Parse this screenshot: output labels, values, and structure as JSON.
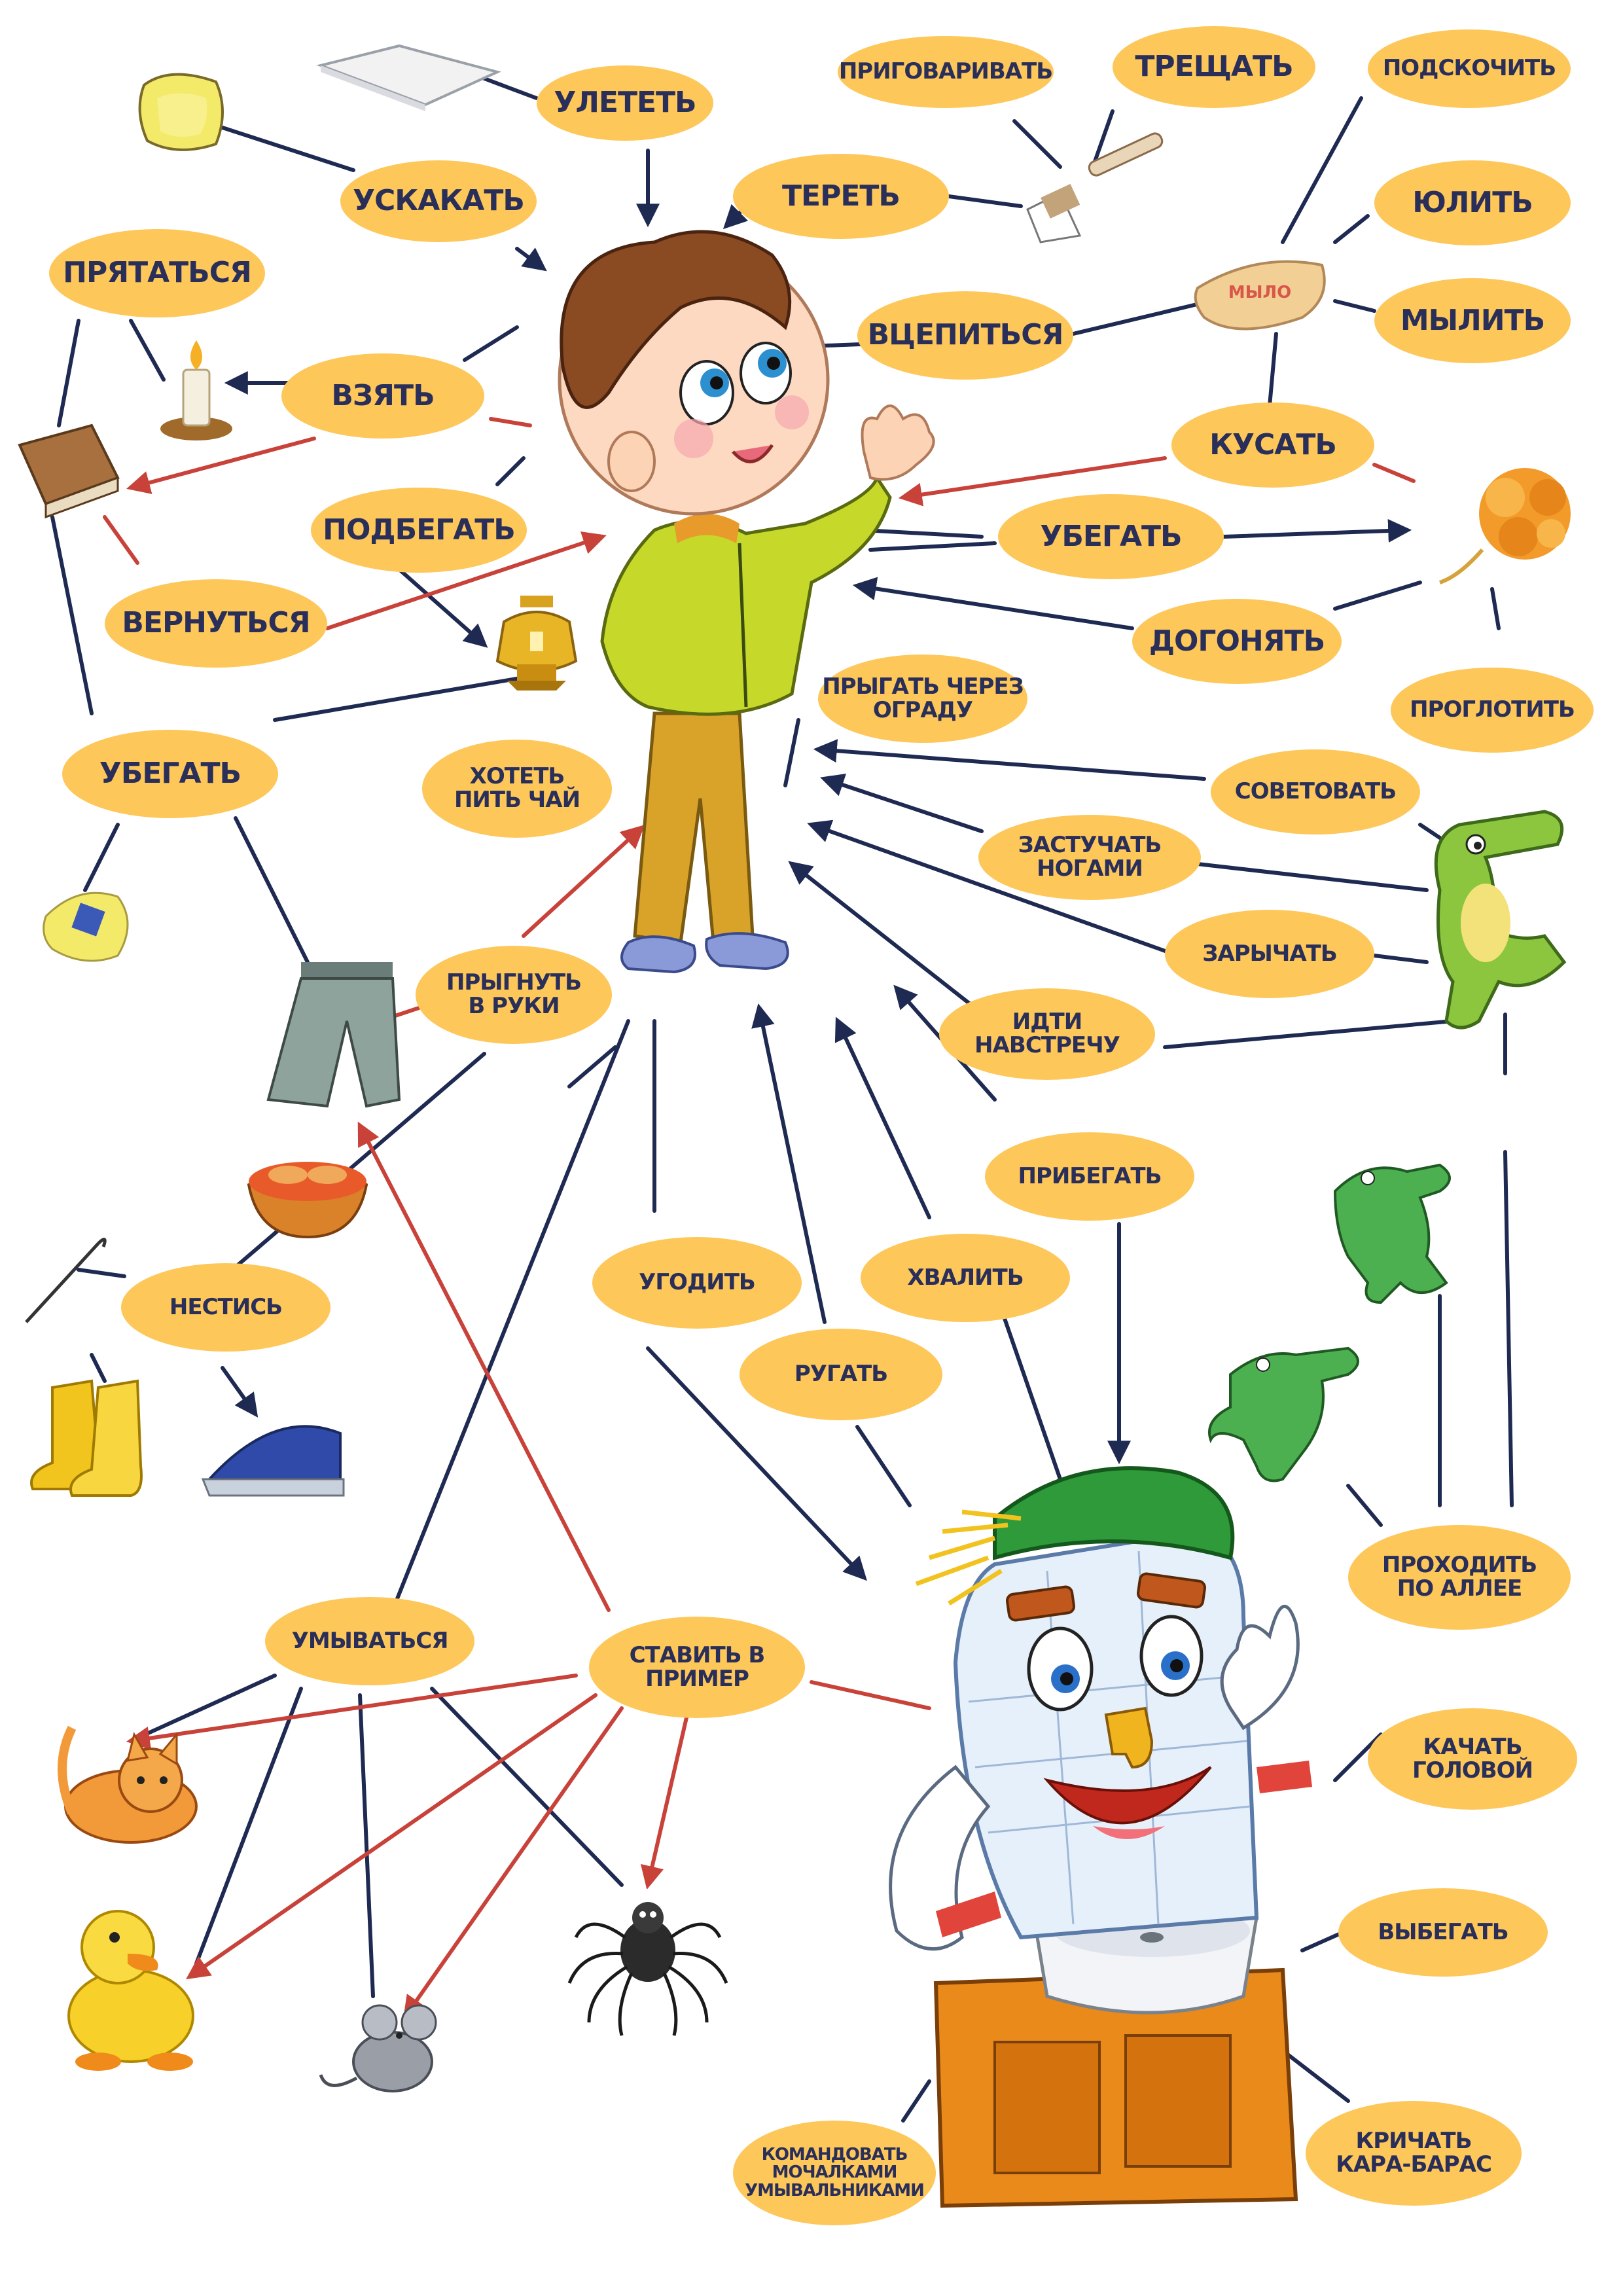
{
  "colors": {
    "pill": "#fdc75a",
    "text": "#2a2f5a",
    "navy_link": "#1f2a52",
    "red_link": "#c8423a"
  },
  "labels": {
    "uletet": "УЛЕТЕТЬ",
    "uskakat": "УСКАКАТЬ",
    "teret": "ТЕРЕТЬ",
    "prigovarivat": "ПРИГОВАРИВАТЬ",
    "treschat": "ТРЕЩАТЬ",
    "podskochit": "ПОДСКОЧИТЬ",
    "yulit": "ЮЛИТЬ",
    "mylit": "МЫЛИТЬ",
    "pryatatsya": "ПРЯТАТЬСЯ",
    "vzyat": "ВЗЯТЬ",
    "vtsepitsya": "ВЦЕПИТЬСЯ",
    "kusat": "КУСАТЬ",
    "podbegat": "ПОДБЕГАТЬ",
    "ubegat_right": "УБЕГАТЬ",
    "vernutsya": "ВЕРНУТЬСЯ",
    "dogonyat": "ДОГОНЯТЬ",
    "prygat_cherez_ogradu": "ПРЫГАТЬ ЧЕРЕЗ\nОГРАДУ",
    "proglotit": "ПРОГЛОТИТЬ",
    "ubegat_left": "УБЕГАТЬ",
    "hotet_pit_chai": "ХОТЕТЬ\nПИТЬ ЧАЙ",
    "sovetovat": "СОВЕТОВАТЬ",
    "zastuchat_nogami": "ЗАСТУЧАТЬ\nНОГАМИ",
    "zarychat": "ЗАРЫЧАТЬ",
    "prygnut_v_ruki": "ПРЫГНУТЬ\nВ РУКИ",
    "idti_navstrechu": "ИДТИ\nНАВСТРЕЧУ",
    "pribegat": "ПРИБЕГАТЬ",
    "nestis": "НЕСТИСЬ",
    "ugodit": "УГОДИТЬ",
    "hvalit": "ХВАЛИТЬ",
    "rugat": "РУГАТЬ",
    "prohodit_po_allee": "ПРОХОДИТЬ\nПО АЛЛЕЕ",
    "umyvatsya": "УМЫВАТЬСЯ",
    "stavit_v_primer": "СТАВИТЬ В\nПРИМЕР",
    "kachat_golovoi": "КАЧАТЬ\nГОЛОВОЙ",
    "vybegat": "ВЫБЕГАТЬ",
    "kommandovat": "КОМАНДОВАТЬ\nМОЧАЛКАМИ\nУМЫВАЛЬНИКАМИ",
    "krichat": "КРИЧАТЬ\nКАРА-БАРАС",
    "soap_word": "МЫЛО"
  },
  "icons": [
    "pillow-icon",
    "blanket-icon",
    "candle-icon",
    "book-icon",
    "samovar-icon",
    "brush-icon",
    "soap-icon",
    "sponge-icon",
    "crocodile-icon",
    "handkerchief-icon",
    "trousers-icon",
    "pie-basket-icon",
    "poker-icon",
    "boots-icon",
    "iron-icon",
    "kitten-icon",
    "duckling-icon",
    "mouse-icon",
    "spider-icon",
    "boy-character",
    "moydodyr-character"
  ]
}
